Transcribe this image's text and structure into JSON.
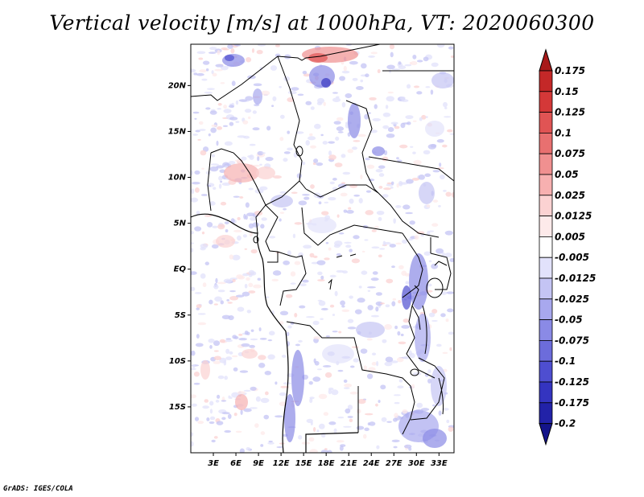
{
  "title": "Vertical velocity [m/s] at 1000hPa, VT: 2020060300",
  "credit": "GrADS: IGES/COLA",
  "map": {
    "lat_labels": [
      "20N",
      "15N",
      "10N",
      "5N",
      "EQ",
      "5S",
      "10S",
      "15S"
    ],
    "lat_values": [
      20,
      15,
      10,
      5,
      0,
      -5,
      -10,
      -15
    ],
    "lon_labels": [
      "3E",
      "6E",
      "9E",
      "12E",
      "15E",
      "18E",
      "21E",
      "24E",
      "27E",
      "30E",
      "33E"
    ],
    "lon_values": [
      3,
      6,
      9,
      12,
      15,
      18,
      21,
      24,
      27,
      30,
      33
    ],
    "lon_range": [
      0,
      35
    ],
    "lat_range": [
      -20,
      24.5
    ]
  },
  "colorbar": {
    "labels": [
      "0.175",
      "0.15",
      "0.125",
      "0.1",
      "0.075",
      "0.05",
      "0.025",
      "0.0125",
      "0.005",
      "-0.005",
      "-0.0125",
      "-0.025",
      "-0.05",
      "-0.075",
      "-0.1",
      "-0.125",
      "-0.175",
      "-0.2"
    ],
    "colors": [
      "#a81a1a",
      "#c42828",
      "#d43838",
      "#e05454",
      "#e87070",
      "#f09090",
      "#f7b0b0",
      "#fbd2d2",
      "#fdeaea",
      "#ffffff",
      "#e2e2fb",
      "#c4c4f4",
      "#a8a8ee",
      "#8a8ae6",
      "#6c6cdb",
      "#4e4ed0",
      "#3434c0",
      "#2222a8",
      "#14148a"
    ],
    "top_color": "#a81a1a",
    "bottom_color": "#14148a"
  }
}
